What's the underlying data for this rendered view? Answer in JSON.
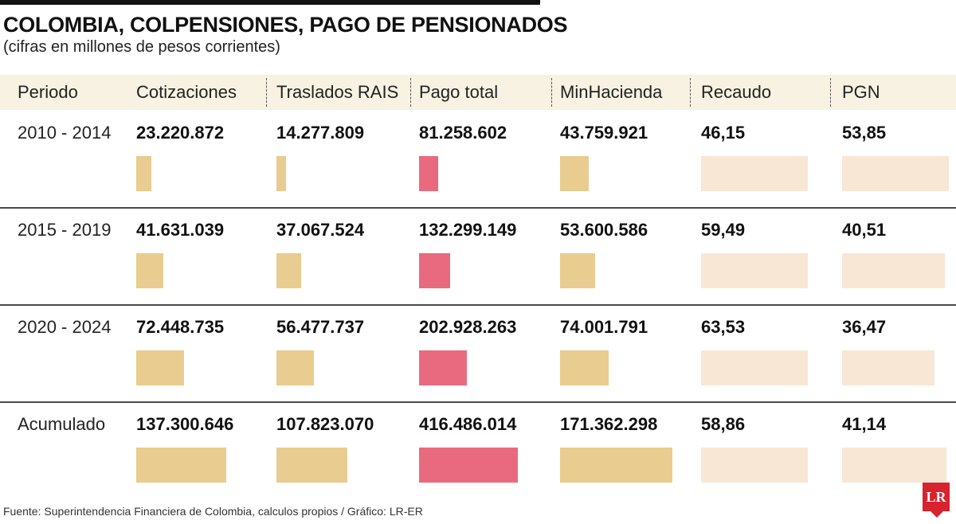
{
  "title": "COLOMBIA, COLPENSIONES, PAGO DE PENSIONADOS",
  "subtitle": "(cifras en millones de pesos corrientes)",
  "footer": "Fuente: Superintendencia Financiera de Colombia, calculos propios / Gráfico: LR-ER",
  "logo_text": "LR",
  "colors": {
    "money_bar": "#e9cc8f",
    "total_bar": "#e96a7e",
    "percent_bar": "#f7e7d4",
    "header_bg": "#f8f2e2",
    "title_bar": "#111111",
    "logo": "#d6232e"
  },
  "chart_data": {
    "type": "table",
    "title": "COLOMBIA, COLPENSIONES, PAGO DE PENSIONADOS",
    "subtitle": "(cifras en millones de pesos corrientes)",
    "columns": [
      "Periodo",
      "Cotizaciones",
      "Traslados RAIS",
      "Pago total",
      "MinHacienda",
      "Recaudo",
      "PGN"
    ],
    "rows": [
      {
        "periodo": "2010 - 2014",
        "labels": [
          "23.220.872",
          "14.277.809",
          "81.258.602",
          "43.759.921",
          "46,15",
          "53,85"
        ],
        "values": [
          23220872,
          14277809,
          81258602,
          43759921,
          46.15,
          53.85
        ]
      },
      {
        "periodo": "2015 - 2019",
        "labels": [
          "41.631.039",
          "37.067.524",
          "132.299.149",
          "53.600.586",
          "59,49",
          "40,51"
        ],
        "values": [
          41631039,
          37067524,
          132299149,
          53600586,
          59.49,
          40.51
        ]
      },
      {
        "periodo": "2020 - 2024",
        "labels": [
          "72.448.735",
          "56.477.737",
          "202.928.263",
          "74.001.791",
          "63,53",
          "36,47"
        ],
        "values": [
          72448735,
          56477737,
          202928263,
          74001791,
          63.53,
          36.47
        ]
      },
      {
        "periodo": "Acumulado",
        "labels": [
          "137.300.646",
          "107.823.070",
          "416.486.014",
          "171.362.298",
          "58,86",
          "41,14"
        ],
        "values": [
          137300646,
          107823070,
          416486014,
          171362298,
          58.86,
          41.14
        ]
      }
    ]
  }
}
